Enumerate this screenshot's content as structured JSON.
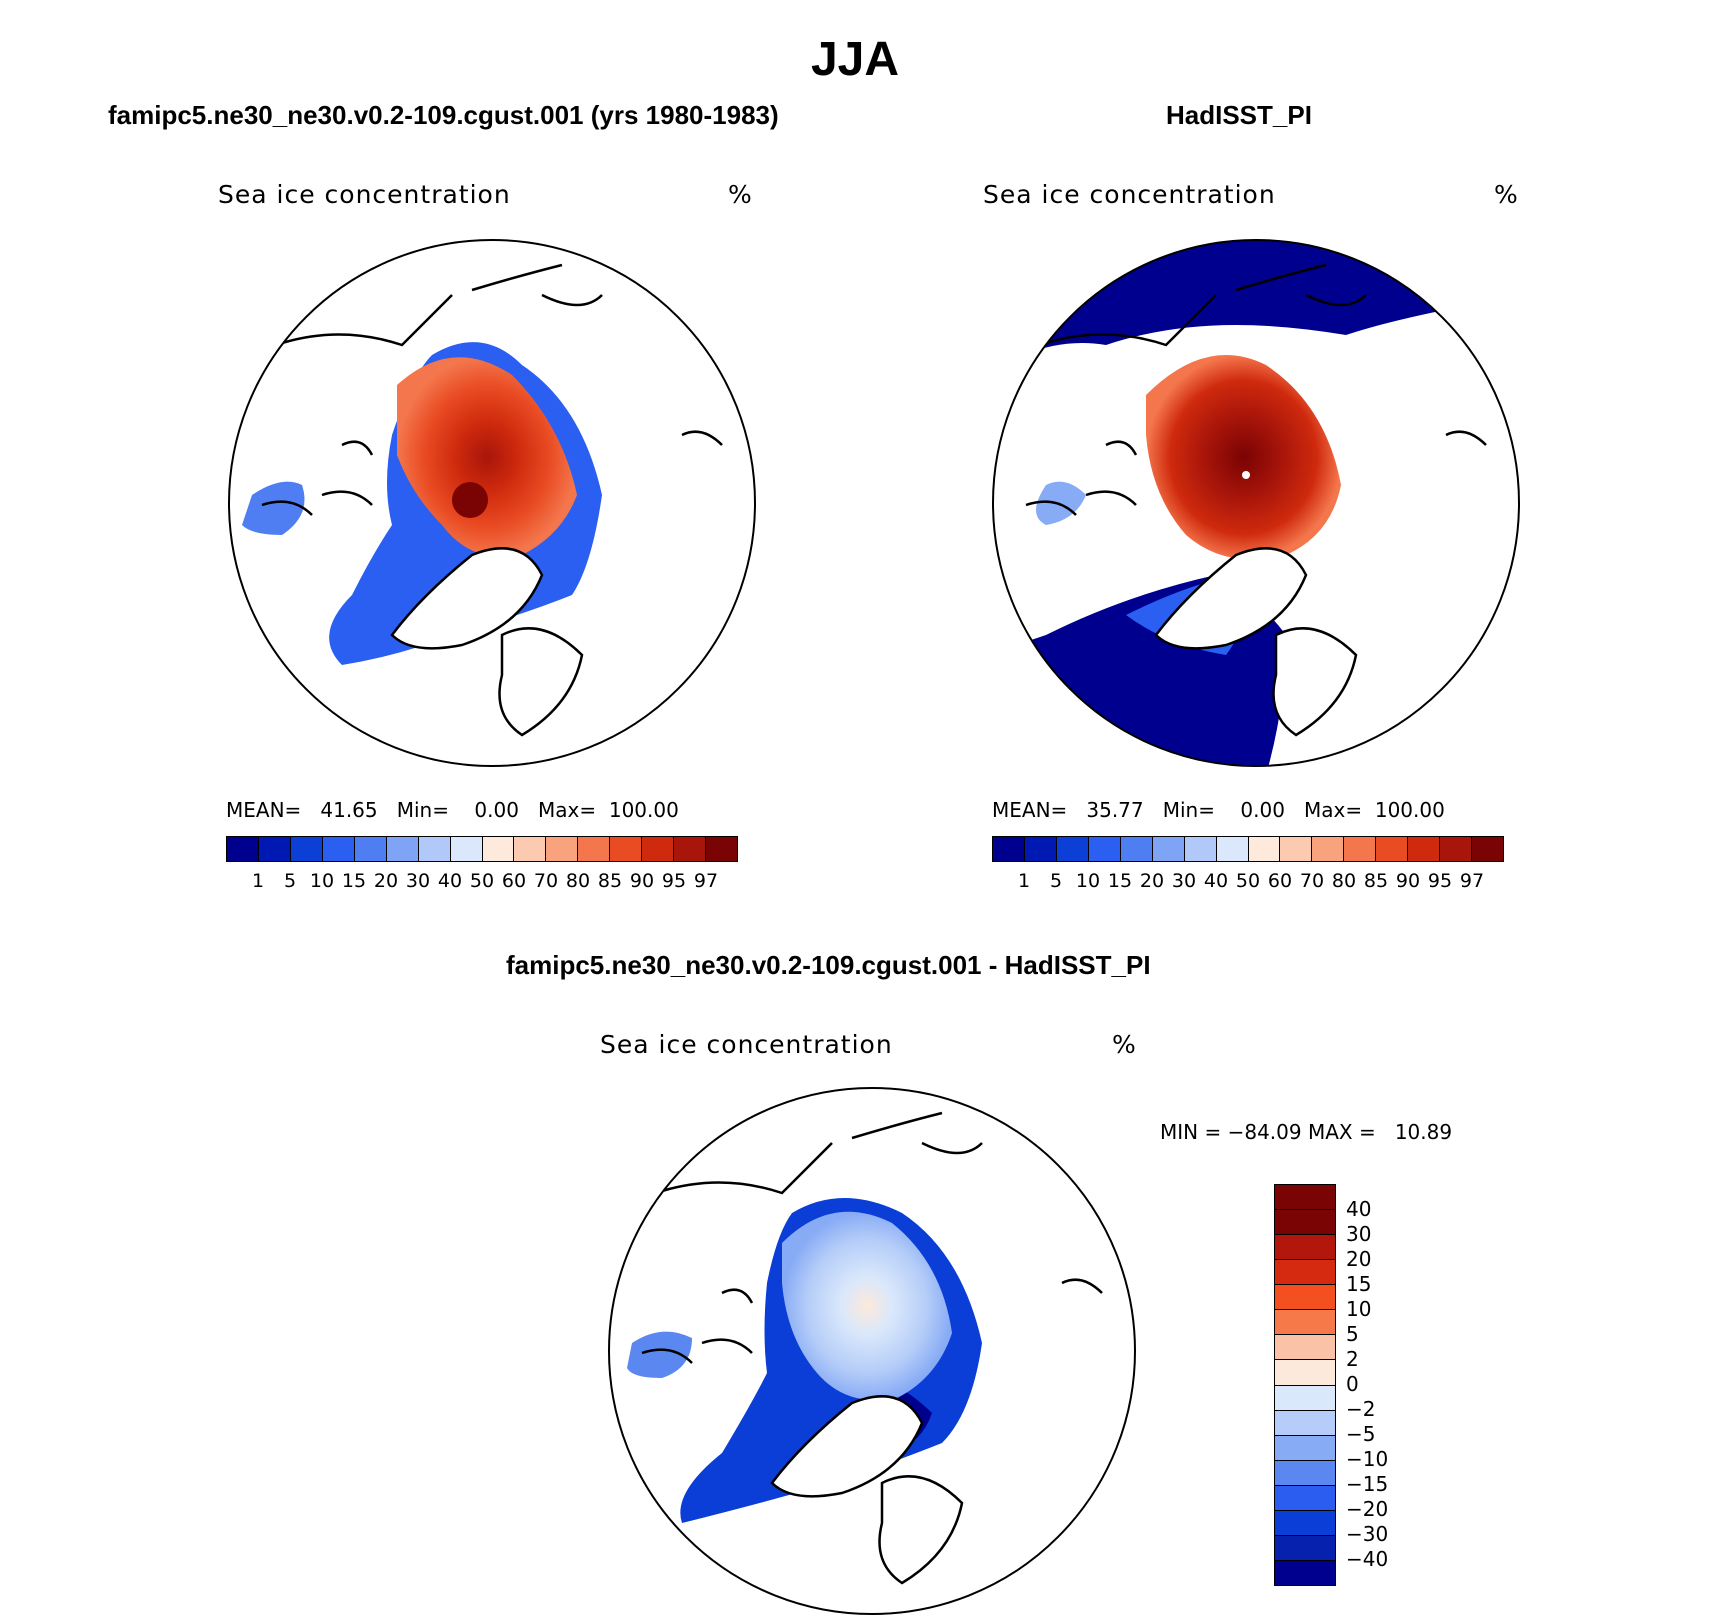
{
  "title": "JJA",
  "panels": [
    {
      "subtitle": "famipc5.ne30_ne30.v0.2-109.cgust.001 (yrs 1980-1983)",
      "variable": "Sea ice concentration",
      "unit": "%",
      "stats": {
        "mean_label": "MEAN=",
        "mean": "41.65",
        "min_label": "Min=",
        "min": "0.00",
        "max_label": "Max=",
        "max": "100.00"
      },
      "central_max": 100,
      "field_description_level": "moderate"
    },
    {
      "subtitle": "HadISST_PI",
      "variable": "Sea ice concentration",
      "unit": "%",
      "stats": {
        "mean_label": "MEAN=",
        "mean": "35.77",
        "min_label": "Min=",
        "min": "0.00",
        "max_label": "Max=",
        "max": "100.00"
      },
      "central_max": 100,
      "field_description_level": "high"
    }
  ],
  "difference": {
    "subtitle": "famipc5.ne30_ne30.v0.2-109.cgust.001 - HadISST_PI",
    "variable": "Sea ice concentration",
    "unit": "%",
    "stats": {
      "min_label": "MIN =",
      "min": "−84.09",
      "max_label": "MAX =",
      "max": "10.89"
    }
  },
  "colorbar_abs": {
    "labels": [
      "1",
      "5",
      "10",
      "15",
      "20",
      "30",
      "40",
      "50",
      "60",
      "70",
      "80",
      "85",
      "90",
      "95",
      "97"
    ],
    "colors": [
      "#00008f",
      "#0019b3",
      "#0c3fd6",
      "#2a5ff2",
      "#4f7df2",
      "#7fa3f5",
      "#b1c9f9",
      "#dbe8fb",
      "#fdeadc",
      "#fbcab0",
      "#f8a27e",
      "#f4764c",
      "#e94b23",
      "#cf2a0d",
      "#a8150a",
      "#7a0303"
    ]
  },
  "colorbar_diff": {
    "labels": [
      "40",
      "30",
      "20",
      "15",
      "10",
      "5",
      "2",
      "0",
      "−2",
      "−5",
      "−10",
      "−15",
      "−20",
      "−30",
      "−40"
    ],
    "colors": [
      "#7a0303",
      "#b3160a",
      "#d62a10",
      "#f4501f",
      "#f6794a",
      "#fac2a6",
      "#fde9db",
      "#dae8fb",
      "#b5cdf8",
      "#88abf5",
      "#5a87f0",
      "#2b5ef0",
      "#0b3ed6",
      "#0621ad",
      "#00008f"
    ]
  }
}
